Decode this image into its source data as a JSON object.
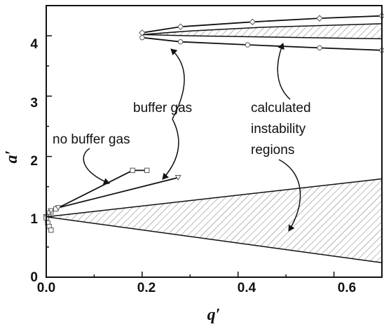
{
  "chart_data": {
    "type": "line",
    "xlabel": "q′",
    "ylabel": "a′",
    "xlim": [
      0,
      0.7
    ],
    "ylim": [
      0,
      4.5
    ],
    "x_ticks": [
      0.0,
      0.2,
      0.4,
      0.6
    ],
    "x_tick_labels": [
      "0.0",
      "0.2",
      "0.4",
      "0.6"
    ],
    "y_ticks": [
      0,
      1,
      2,
      3,
      4
    ],
    "y_tick_labels": [
      "0",
      "1",
      "2",
      "3",
      "4"
    ],
    "grid": false,
    "regions": [
      {
        "description": "instability region near a' = 1",
        "hatched": true,
        "upper": [
          [
            0.0,
            1.0
          ],
          [
            0.7,
            1.63
          ]
        ],
        "lower": [
          [
            0.0,
            1.0
          ],
          [
            0.7,
            0.24
          ]
        ]
      },
      {
        "description": "instability region near a' = 4",
        "hatched": true,
        "upper": [
          [
            0.2,
            4.02
          ],
          [
            0.3,
            4.08
          ],
          [
            0.45,
            4.14
          ],
          [
            0.7,
            4.2
          ]
        ],
        "lower": [
          [
            0.2,
            4.02
          ],
          [
            0.3,
            4.0
          ],
          [
            0.45,
            3.98
          ],
          [
            0.7,
            3.95
          ]
        ]
      }
    ],
    "curves": [
      {
        "marker": "diamond",
        "x": [
          0.2,
          0.28,
          0.43,
          0.57,
          0.7
        ],
        "y": [
          4.05,
          4.15,
          4.23,
          4.29,
          4.33
        ]
      },
      {
        "marker": "circle",
        "x": [
          0.2,
          0.28,
          0.42,
          0.57,
          0.7
        ],
        "y": [
          3.97,
          3.9,
          3.85,
          3.8,
          3.76
        ]
      },
      {
        "marker": "square",
        "x": [
          0.0,
          0.005,
          0.01,
          0.02,
          0.18,
          0.21
        ],
        "y": [
          1.0,
          1.05,
          1.08,
          1.13,
          1.77,
          1.77
        ]
      },
      {
        "marker": "triangle-down",
        "x": [
          0.0,
          0.005,
          0.01,
          0.025,
          0.275
        ],
        "y": [
          1.0,
          1.06,
          1.1,
          1.15,
          1.65
        ]
      },
      {
        "marker": "square",
        "x": [
          0.0,
          0.003,
          0.006,
          0.01
        ],
        "y": [
          0.98,
          0.9,
          0.84,
          0.78
        ]
      }
    ],
    "annotations": [
      {
        "text": "no buffer gas",
        "arrow_to": [
          0.16,
          1.57
        ]
      },
      {
        "text": "buffer gas",
        "arrow_to": [
          0.23,
          1.62
        ]
      },
      {
        "text": "calculated",
        "arrow_to": [
          0.5,
          4.0
        ]
      },
      {
        "text": "instability",
        "arrow_to": [
          0.48,
          0.8
        ]
      },
      {
        "text": "regions",
        "arrow_to": null
      }
    ]
  }
}
